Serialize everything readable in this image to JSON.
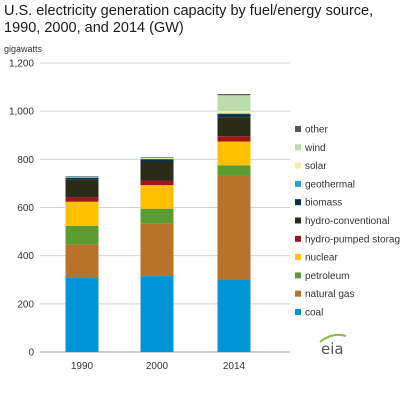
{
  "chart_data": {
    "type": "bar",
    "stacked": true,
    "title_lines": [
      "U.S. electricity generation capacity by fuel/energy source,",
      "1990, 2000, and 2014 (GW)"
    ],
    "ylabel": "gigawatts",
    "ylim": [
      0,
      1200
    ],
    "yticks": [
      "0",
      "200",
      "400",
      "600",
      "800",
      "1,000",
      "1,200"
    ],
    "ytick_values": [
      0,
      200,
      400,
      600,
      800,
      1000,
      1200
    ],
    "grid": true,
    "legend_position": "right",
    "categories": [
      "1990",
      "2000",
      "2014"
    ],
    "series": [
      {
        "name": "coal",
        "color": "#0096d6",
        "values": [
          307,
          315,
          299
        ]
      },
      {
        "name": "natural gas",
        "color": "#b8732a",
        "values": [
          140,
          220,
          432
        ]
      },
      {
        "name": "petroleum",
        "color": "#5a9c32",
        "values": [
          77,
          60,
          44
        ]
      },
      {
        "name": "nuclear",
        "color": "#ffc000",
        "values": [
          100,
          98,
          99
        ]
      },
      {
        "name": "hydro-pumped storage",
        "color": "#a0151c",
        "values": [
          18,
          19,
          22
        ]
      },
      {
        "name": "hydro-conventional",
        "color": "#2b2b1a",
        "values": [
          73,
          79,
          79
        ]
      },
      {
        "name": "biomass",
        "color": "#0b2f4a",
        "values": [
          8,
          9,
          13
        ]
      },
      {
        "name": "geothermal",
        "color": "#29a6c4",
        "values": [
          3,
          3,
          3
        ]
      },
      {
        "name": "solar",
        "color": "#f8eca0",
        "values": [
          0,
          1,
          10
        ]
      },
      {
        "name": "wind",
        "color": "#bcdcae",
        "values": [
          2,
          3,
          65
        ]
      },
      {
        "name": "other",
        "color": "#555555",
        "values": [
          2,
          2,
          5
        ]
      }
    ]
  },
  "logo": {
    "text": "eia"
  }
}
